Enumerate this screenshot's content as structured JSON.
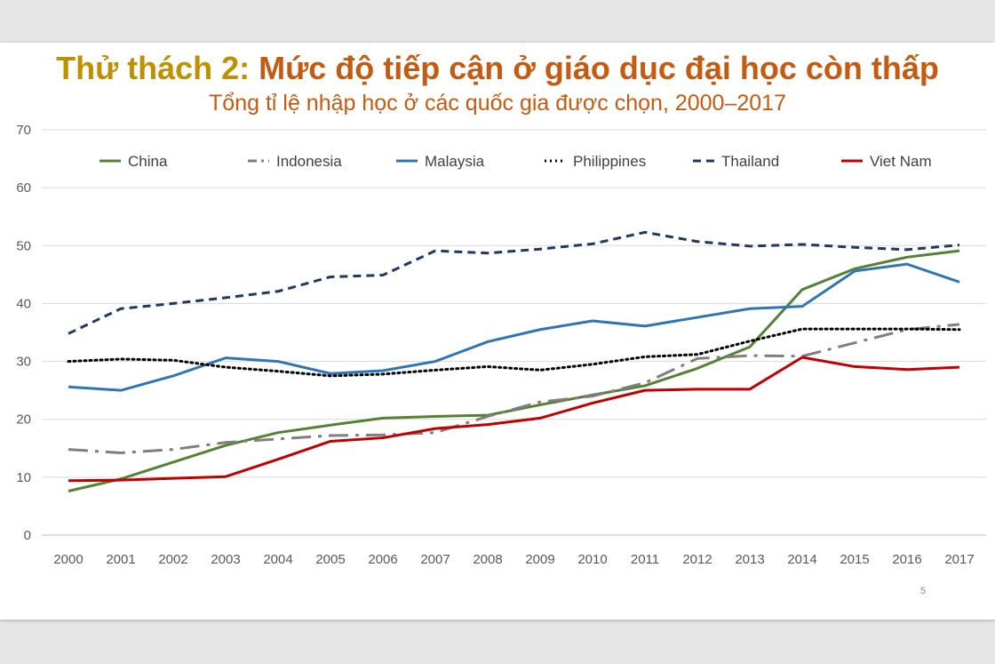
{
  "slide": {
    "title_lead": "Thử thách 2:",
    "title_rest": " Mức độ tiếp cận ở giáo dục đại học còn thấp",
    "subtitle": "Tổng tỉ lệ nhập học ở các quốc gia được chọn, 2000–2017",
    "page_number": "5",
    "colors": {
      "title_lead": "#bf9000",
      "title": "#c55a11",
      "background": "#e6e6e6"
    }
  },
  "chart_data": {
    "type": "line",
    "title": "",
    "xlabel": "",
    "ylabel": "",
    "x": [
      "2000",
      "2001",
      "2002",
      "2003",
      "2004",
      "2005",
      "2006",
      "2007",
      "2008",
      "2009",
      "2010",
      "2011",
      "2012",
      "2013",
      "2014",
      "2015",
      "2016",
      "2017"
    ],
    "ylim": [
      0,
      70
    ],
    "yticks": [
      0,
      10,
      20,
      30,
      40,
      50,
      60,
      70
    ],
    "grid": true,
    "legend": "top",
    "series": [
      {
        "name": "China",
        "color": "#548235",
        "dash": "solid",
        "values": [
          7.6,
          9.7,
          12.6,
          15.5,
          17.7,
          19.0,
          20.2,
          20.5,
          20.7,
          22.5,
          24.2,
          25.8,
          28.8,
          32.5,
          42.4,
          46.0,
          48.0,
          49.1
        ]
      },
      {
        "name": "Indonesia",
        "color": "#7f7f7f",
        "dash": "dashdot",
        "values": [
          14.8,
          14.2,
          14.8,
          16.0,
          16.6,
          17.2,
          17.3,
          17.7,
          20.5,
          23.0,
          24.0,
          26.3,
          30.5,
          31.0,
          30.9,
          33.2,
          35.5,
          36.4
        ]
      },
      {
        "name": "Malaysia",
        "color": "#2e75b6",
        "dash": "solid",
        "values": [
          25.6,
          25.0,
          27.5,
          30.6,
          30.0,
          27.9,
          28.4,
          30.0,
          33.4,
          35.5,
          37.0,
          36.1,
          37.6,
          39.1,
          39.5,
          45.6,
          46.8,
          43.7
        ]
      },
      {
        "name": "Philippines",
        "color": "#000000",
        "dash": "dot",
        "values": [
          30.0,
          30.4,
          30.2,
          29.0,
          28.3,
          27.5,
          27.8,
          28.5,
          29.1,
          28.5,
          29.5,
          30.8,
          31.2,
          33.5,
          35.6,
          35.6,
          35.6,
          35.5
        ]
      },
      {
        "name": "Thailand",
        "color": "#203864",
        "dash": "dash",
        "values": [
          34.8,
          39.1,
          40.0,
          41.0,
          42.1,
          44.6,
          44.9,
          49.1,
          48.7,
          49.4,
          50.3,
          52.3,
          50.7,
          49.9,
          50.2,
          49.7,
          49.3,
          50.1
        ]
      },
      {
        "name": "Viet Nam",
        "color": "#c00000",
        "dash": "solid",
        "values": [
          9.4,
          9.5,
          9.8,
          10.1,
          13.1,
          16.2,
          16.8,
          18.4,
          19.1,
          20.2,
          22.8,
          25.0,
          25.2,
          25.2,
          30.7,
          29.1,
          28.6,
          29.0
        ]
      }
    ]
  }
}
